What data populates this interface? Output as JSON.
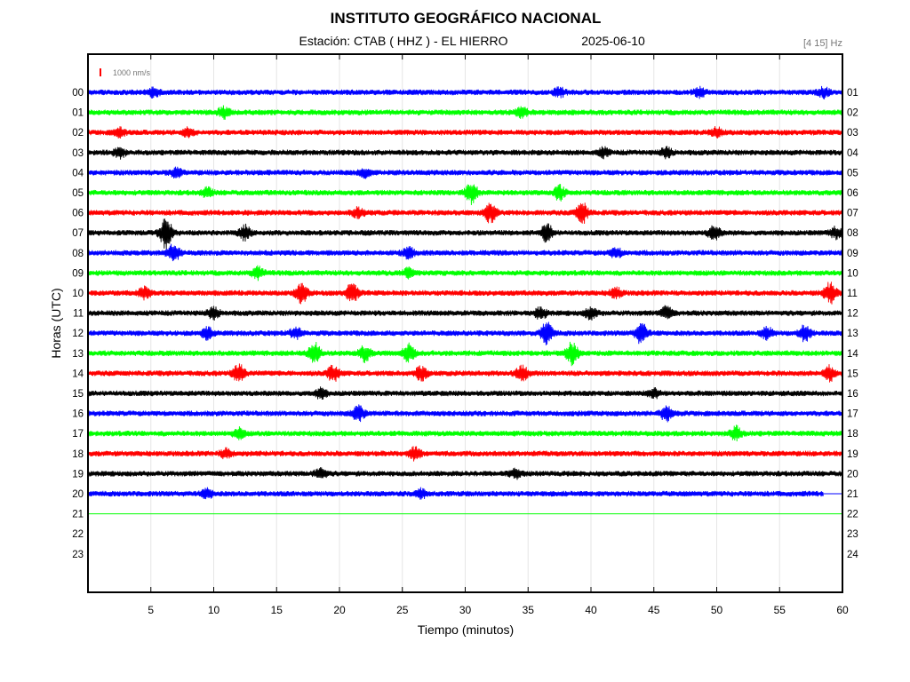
{
  "header": {
    "title": "INSTITUTO GEOGRÁFICO NACIONAL",
    "station": "Estación:  CTAB ( HHZ ) - EL HIERRO",
    "date": "2025-06-10",
    "filter": "[4 15] Hz",
    "scale_label": "1000 nm/s",
    "scale_color": "#ff0000"
  },
  "chart_data": {
    "type": "line",
    "xlabel": "Tiempo (minutos)",
    "ylabel": "Horas (UTC)",
    "xlim": [
      0,
      60
    ],
    "x_ticks": [
      "5",
      "10",
      "15",
      "20",
      "25",
      "30",
      "35",
      "40",
      "45",
      "50",
      "55",
      "60"
    ],
    "x_tick_values": [
      5,
      10,
      15,
      20,
      25,
      30,
      35,
      40,
      45,
      50,
      55,
      60
    ],
    "grid": true,
    "left_hour_labels": [
      "00",
      "01",
      "02",
      "03",
      "04",
      "05",
      "06",
      "07",
      "08",
      "09",
      "10",
      "11",
      "12",
      "13",
      "14",
      "15",
      "16",
      "17",
      "18",
      "19",
      "20",
      "21",
      "22",
      "23"
    ],
    "right_hour_labels": [
      "01",
      "02",
      "03",
      "04",
      "05",
      "06",
      "07",
      "08",
      "09",
      "10",
      "11",
      "12",
      "13",
      "14",
      "15",
      "16",
      "17",
      "18",
      "19",
      "20",
      "21",
      "22",
      "23",
      "24"
    ],
    "color_cycle": [
      "#0000ff",
      "#00ff00",
      "#ff0000",
      "#000000"
    ],
    "series": [
      {
        "hour": 0,
        "end_minute": 60,
        "events": [
          [
            5.2,
            1.2
          ],
          [
            37.5,
            1.2
          ],
          [
            48.7,
            1.2
          ],
          [
            58.5,
            1.3
          ]
        ]
      },
      {
        "hour": 1,
        "end_minute": 60,
        "events": [
          [
            10.8,
            1.6
          ],
          [
            34.5,
            1.3
          ]
        ]
      },
      {
        "hour": 2,
        "end_minute": 60,
        "events": [
          [
            2.5,
            1.2
          ],
          [
            8.0,
            1.2
          ],
          [
            50.0,
            1.3
          ]
        ]
      },
      {
        "hour": 3,
        "end_minute": 60,
        "events": [
          [
            2.5,
            1.4
          ],
          [
            41.0,
            1.3
          ],
          [
            46.0,
            1.3
          ]
        ]
      },
      {
        "hour": 4,
        "end_minute": 60,
        "events": [
          [
            7.0,
            1.2
          ],
          [
            22.0,
            1.2
          ]
        ]
      },
      {
        "hour": 5,
        "end_minute": 60,
        "events": [
          [
            9.5,
            1.2
          ],
          [
            30.5,
            3.0
          ],
          [
            37.5,
            2.0
          ]
        ]
      },
      {
        "hour": 6,
        "end_minute": 60,
        "events": [
          [
            21.5,
            1.3
          ],
          [
            32.0,
            2.8
          ],
          [
            39.3,
            3.0
          ]
        ]
      },
      {
        "hour": 7,
        "end_minute": 60,
        "events": [
          [
            6.2,
            4.5
          ],
          [
            12.5,
            2.0
          ],
          [
            36.5,
            2.5
          ],
          [
            49.8,
            2.0
          ],
          [
            59.5,
            1.5
          ]
        ]
      },
      {
        "hour": 8,
        "end_minute": 60,
        "events": [
          [
            6.8,
            2.5
          ],
          [
            25.5,
            1.5
          ],
          [
            42.0,
            1.3
          ]
        ]
      },
      {
        "hour": 9,
        "end_minute": 60,
        "events": [
          [
            13.5,
            1.7
          ],
          [
            25.5,
            1.2
          ]
        ]
      },
      {
        "hour": 10,
        "end_minute": 60,
        "events": [
          [
            4.5,
            1.6
          ],
          [
            17.0,
            2.8
          ],
          [
            21.0,
            2.8
          ],
          [
            42.0,
            1.5
          ],
          [
            59.0,
            3.0
          ]
        ]
      },
      {
        "hour": 11,
        "end_minute": 60,
        "events": [
          [
            10.0,
            1.5
          ],
          [
            36.0,
            1.6
          ],
          [
            40.0,
            1.7
          ],
          [
            46.0,
            1.8
          ]
        ]
      },
      {
        "hour": 12,
        "end_minute": 60,
        "events": [
          [
            9.5,
            1.6
          ],
          [
            16.5,
            1.5
          ],
          [
            36.5,
            3.2
          ],
          [
            44.0,
            3.0
          ],
          [
            54.0,
            1.6
          ],
          [
            57.0,
            2.2
          ]
        ]
      },
      {
        "hour": 13,
        "end_minute": 60,
        "events": [
          [
            18.0,
            3.0
          ],
          [
            22.0,
            2.2
          ],
          [
            25.5,
            2.5
          ],
          [
            38.5,
            3.2
          ]
        ]
      },
      {
        "hour": 14,
        "end_minute": 60,
        "events": [
          [
            12.0,
            2.5
          ],
          [
            19.5,
            2.2
          ],
          [
            26.5,
            2.0
          ],
          [
            34.5,
            2.4
          ],
          [
            59.0,
            2.0
          ]
        ]
      },
      {
        "hour": 15,
        "end_minute": 60,
        "events": [
          [
            18.5,
            1.3
          ],
          [
            45.0,
            1.2
          ]
        ]
      },
      {
        "hour": 16,
        "end_minute": 60,
        "events": [
          [
            21.5,
            2.4
          ],
          [
            46.0,
            2.1
          ]
        ]
      },
      {
        "hour": 17,
        "end_minute": 60,
        "events": [
          [
            12.0,
            1.4
          ],
          [
            51.5,
            2.0
          ]
        ]
      },
      {
        "hour": 18,
        "end_minute": 60,
        "events": [
          [
            11.0,
            1.3
          ],
          [
            26.0,
            1.7
          ]
        ]
      },
      {
        "hour": 19,
        "end_minute": 60,
        "events": [
          [
            18.5,
            1.5
          ],
          [
            34.0,
            1.2
          ]
        ]
      },
      {
        "hour": 20,
        "end_minute": 58.5,
        "events": [
          [
            9.5,
            1.3
          ],
          [
            26.5,
            1.3
          ]
        ]
      },
      {
        "hour": 21,
        "end_minute": 60,
        "flat": true,
        "events": []
      }
    ]
  }
}
